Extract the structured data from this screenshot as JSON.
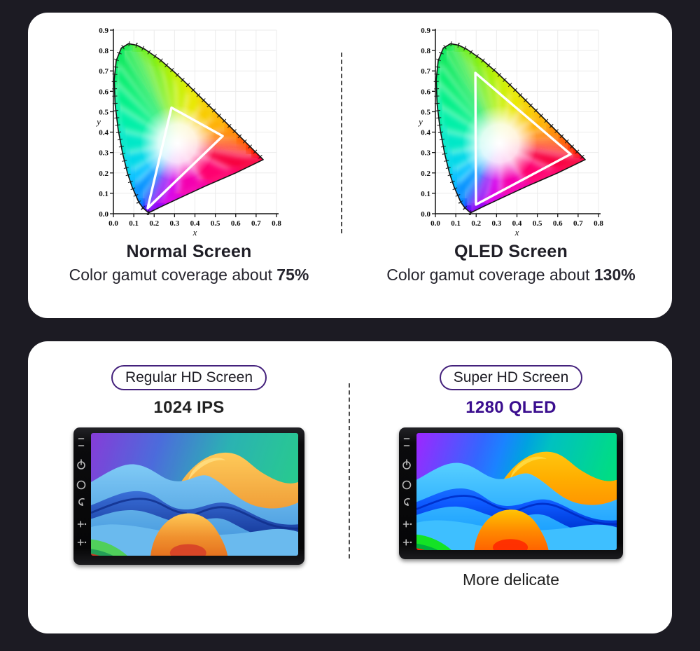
{
  "page": {
    "background": "#1c1b23",
    "card_background": "#ffffff"
  },
  "gamut_section": {
    "normal": {
      "title": "Normal Screen",
      "subtitle_prefix": "Color gamut coverage about ",
      "coverage": "75%"
    },
    "qled": {
      "title": "QLED Screen",
      "subtitle_prefix": "Color gamut coverage about ",
      "coverage": "130%"
    }
  },
  "screen_section": {
    "regular": {
      "badge": "Regular HD Screen",
      "spec": "1024 IPS"
    },
    "super": {
      "badge": "Super HD Screen",
      "spec": "1280 QLED",
      "caption": "More delicate"
    },
    "accent_color": "#3a0d8e",
    "badge_border_color": "#44217c"
  },
  "device": {
    "side_icons": [
      "mic-hole",
      "power-icon",
      "home-icon",
      "back-icon",
      "volume-up-icon",
      "volume-down-icon"
    ]
  },
  "chart_data": [
    {
      "type": "chromaticity",
      "title": "Normal Screen",
      "xlabel": "x",
      "ylabel": "y",
      "xlim": [
        0,
        0.8
      ],
      "ylim": [
        0,
        0.9
      ],
      "x_ticks": [
        "0.0",
        "0.1",
        "0.2",
        "0.3",
        "0.4",
        "0.5",
        "0.6",
        "0.7",
        "0.8"
      ],
      "y_ticks": [
        "0.0",
        "0.1",
        "0.2",
        "0.3",
        "0.4",
        "0.5",
        "0.6",
        "0.7",
        "0.8",
        "0.9"
      ],
      "grid": true,
      "gamut_triangle": [
        [
          0.168,
          0.027
        ],
        [
          0.285,
          0.52
        ],
        [
          0.536,
          0.381
        ]
      ],
      "coverage": "75%"
    },
    {
      "type": "chromaticity",
      "title": "QLED Screen",
      "xlabel": "x",
      "ylabel": "y",
      "xlim": [
        0,
        0.8
      ],
      "ylim": [
        0,
        0.9
      ],
      "x_ticks": [
        "0.0",
        "0.1",
        "0.2",
        "0.3",
        "0.4",
        "0.5",
        "0.6",
        "0.7",
        "0.8"
      ],
      "y_ticks": [
        "0.0",
        "0.1",
        "0.2",
        "0.3",
        "0.4",
        "0.5",
        "0.6",
        "0.7",
        "0.8",
        "0.9"
      ],
      "grid": true,
      "gamut_triangle": [
        [
          0.199,
          0.045
        ],
        [
          0.196,
          0.69
        ],
        [
          0.663,
          0.292
        ]
      ],
      "coverage": "130%"
    }
  ]
}
